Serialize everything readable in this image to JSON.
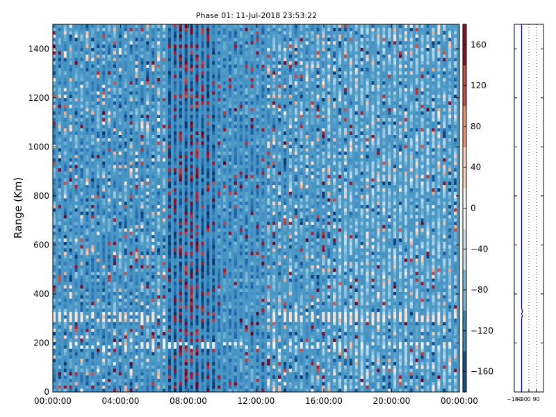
{
  "chart_data": [
    {
      "type": "heatmap",
      "title": "Phase 01: 11-Jul-2018 23:53:22",
      "xlabel": "",
      "ylabel": "Range (Km)",
      "x_ticks": [
        "00:00:00",
        "04:00:00",
        "08:00:00",
        "12:00:00",
        "16:00:00",
        "20:00:00",
        "00:00:00"
      ],
      "y_ticks": [
        0,
        200,
        400,
        600,
        800,
        1000,
        1200,
        1400
      ],
      "ylim": [
        0,
        1500
      ],
      "x_range_hours": [
        0,
        24
      ],
      "colormap": "RdBu_r",
      "colorbar": {
        "ticks": [
          -160,
          -120,
          -80,
          -40,
          0,
          40,
          80,
          120,
          160
        ],
        "range": [
          -180,
          180
        ]
      },
      "grid": false,
      "features": [
        {
          "x_start_hours": 6.6,
          "x_end_hours": 9.8,
          "description": "dense dark red/blue mixed band"
        },
        {
          "x_start_hours": 9.8,
          "x_end_hours": 12.5,
          "description": "medium blue band"
        },
        {
          "range_km": [
            290,
            330
          ],
          "description": "light horizontal band"
        },
        {
          "range_km": [
            180,
            200
          ],
          "description": "faint horizontal band near 190 km"
        }
      ]
    },
    {
      "type": "line",
      "x_ticks": [
        "−180",
        "−90",
        "0",
        "90"
      ],
      "xlim": [
        -180,
        180
      ],
      "ylim": [
        0,
        1500
      ],
      "grid": "vertical dotted",
      "series": [
        {
          "color": "#0000cc",
          "x": [
            -90,
            -90,
            -90,
            -80,
            -90,
            -76,
            -90,
            -90
          ],
          "y": [
            0,
            290,
            300,
            310,
            320,
            330,
            340,
            1500
          ]
        }
      ]
    }
  ]
}
